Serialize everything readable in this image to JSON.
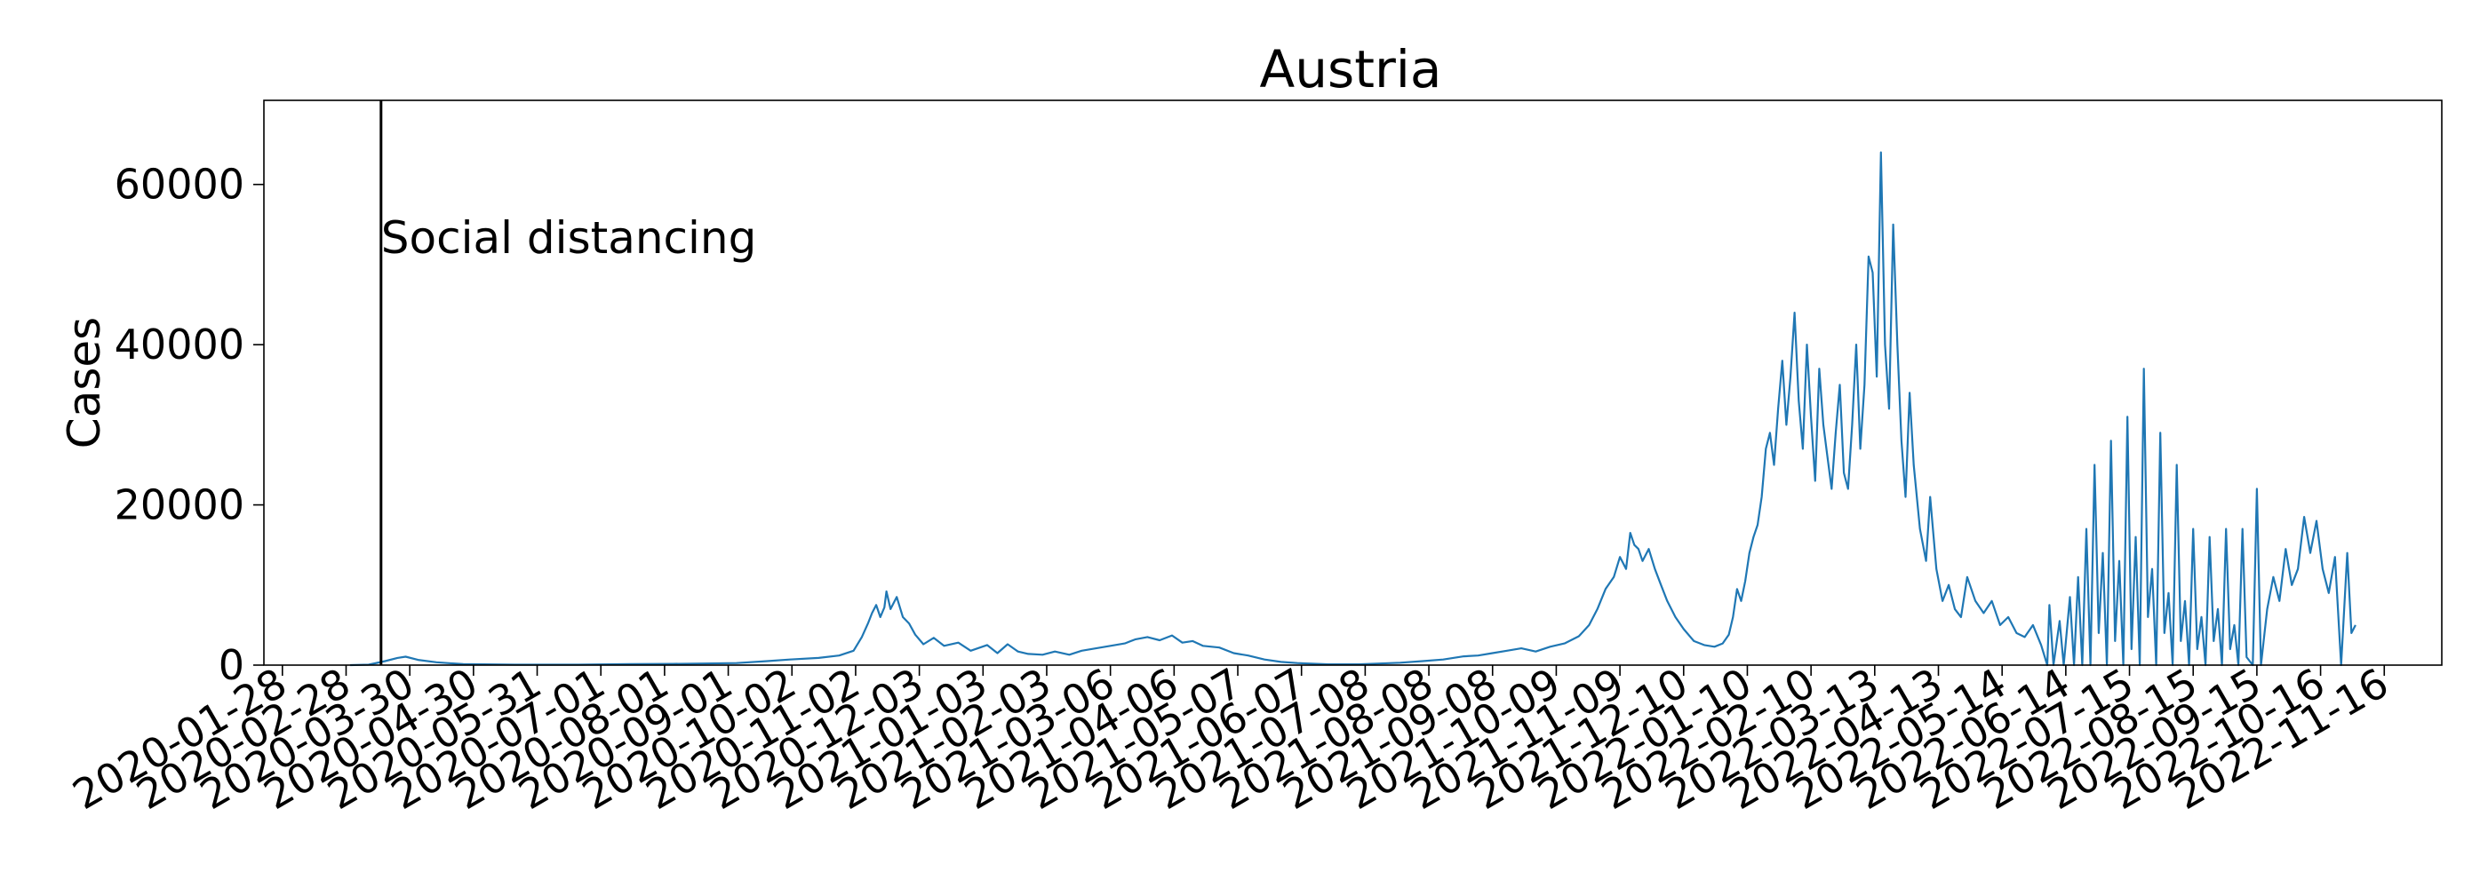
{
  "chart_data": {
    "type": "line",
    "title": "Austria",
    "xlabel": "",
    "ylabel": "Cases",
    "x_tick_labels": [
      "2020-01-28",
      "2020-02-28",
      "2020-03-30",
      "2020-04-30",
      "2020-05-31",
      "2020-07-01",
      "2020-08-01",
      "2020-09-01",
      "2020-10-02",
      "2020-11-02",
      "2020-12-03",
      "2021-01-03",
      "2021-02-03",
      "2021-03-06",
      "2021-04-06",
      "2021-05-07",
      "2021-06-07",
      "2021-07-08",
      "2021-08-08",
      "2021-09-08",
      "2021-10-09",
      "2021-11-09",
      "2021-12-10",
      "2022-01-10",
      "2022-02-10",
      "2022-03-13",
      "2022-04-13",
      "2022-05-14",
      "2022-06-14",
      "2022-07-15",
      "2022-08-15",
      "2022-09-15",
      "2022-10-16",
      "2022-11-16"
    ],
    "y_ticks": [
      0,
      20000,
      40000,
      60000
    ],
    "ylim": [
      0,
      70500
    ],
    "xlim": [
      "2020-01-19",
      "2022-12-14"
    ],
    "line_color": "#1f77b4",
    "grid": false,
    "annotation": {
      "label": "Social distancing",
      "x": "2020-03-16"
    },
    "series": [
      {
        "values": [
          [
            "2020-03-01",
            0
          ],
          [
            "2020-03-10",
            50
          ],
          [
            "2020-03-18",
            500
          ],
          [
            "2020-03-24",
            900
          ],
          [
            "2020-03-28",
            1050
          ],
          [
            "2020-04-03",
            650
          ],
          [
            "2020-04-12",
            350
          ],
          [
            "2020-04-25",
            120
          ],
          [
            "2020-05-20",
            60
          ],
          [
            "2020-06-20",
            60
          ],
          [
            "2020-07-15",
            120
          ],
          [
            "2020-08-05",
            150
          ],
          [
            "2020-08-20",
            200
          ],
          [
            "2020-09-05",
            250
          ],
          [
            "2020-09-20",
            500
          ],
          [
            "2020-10-01",
            700
          ],
          [
            "2020-10-15",
            900
          ],
          [
            "2020-10-25",
            1200
          ],
          [
            "2020-11-01",
            1800
          ],
          [
            "2020-11-05",
            3500
          ],
          [
            "2020-11-08",
            5200
          ],
          [
            "2020-11-10",
            6500
          ],
          [
            "2020-11-12",
            7500
          ],
          [
            "2020-11-14",
            6000
          ],
          [
            "2020-11-16",
            7200
          ],
          [
            "2020-11-17",
            9200
          ],
          [
            "2020-11-19",
            7000
          ],
          [
            "2020-11-22",
            8500
          ],
          [
            "2020-11-25",
            6000
          ],
          [
            "2020-11-28",
            5200
          ],
          [
            "2020-12-01",
            3800
          ],
          [
            "2020-12-05",
            2600
          ],
          [
            "2020-12-10",
            3400
          ],
          [
            "2020-12-15",
            2400
          ],
          [
            "2020-12-22",
            2800
          ],
          [
            "2020-12-28",
            1800
          ],
          [
            "2021-01-05",
            2500
          ],
          [
            "2021-01-10",
            1500
          ],
          [
            "2021-01-15",
            2600
          ],
          [
            "2021-01-20",
            1700
          ],
          [
            "2021-01-25",
            1400
          ],
          [
            "2021-02-01",
            1300
          ],
          [
            "2021-02-07",
            1700
          ],
          [
            "2021-02-14",
            1300
          ],
          [
            "2021-02-20",
            1800
          ],
          [
            "2021-02-27",
            2100
          ],
          [
            "2021-03-06",
            2400
          ],
          [
            "2021-03-13",
            2700
          ],
          [
            "2021-03-18",
            3200
          ],
          [
            "2021-03-24",
            3500
          ],
          [
            "2021-03-30",
            3100
          ],
          [
            "2021-04-05",
            3700
          ],
          [
            "2021-04-10",
            2800
          ],
          [
            "2021-04-15",
            3000
          ],
          [
            "2021-04-20",
            2400
          ],
          [
            "2021-04-28",
            2200
          ],
          [
            "2021-05-05",
            1500
          ],
          [
            "2021-05-12",
            1200
          ],
          [
            "2021-05-20",
            700
          ],
          [
            "2021-05-28",
            400
          ],
          [
            "2021-06-05",
            250
          ],
          [
            "2021-06-20",
            100
          ],
          [
            "2021-07-05",
            100
          ],
          [
            "2021-07-15",
            200
          ],
          [
            "2021-07-25",
            300
          ],
          [
            "2021-08-05",
            500
          ],
          [
            "2021-08-15",
            700
          ],
          [
            "2021-08-25",
            1100
          ],
          [
            "2021-09-01",
            1200
          ],
          [
            "2021-09-08",
            1500
          ],
          [
            "2021-09-15",
            1800
          ],
          [
            "2021-09-22",
            2100
          ],
          [
            "2021-09-29",
            1700
          ],
          [
            "2021-10-06",
            2300
          ],
          [
            "2021-10-13",
            2700
          ],
          [
            "2021-10-20",
            3600
          ],
          [
            "2021-10-25",
            5000
          ],
          [
            "2021-10-29",
            7000
          ],
          [
            "2021-11-02",
            9500
          ],
          [
            "2021-11-06",
            11000
          ],
          [
            "2021-11-09",
            13500
          ],
          [
            "2021-11-12",
            12000
          ],
          [
            "2021-11-14",
            16500
          ],
          [
            "2021-11-16",
            15000
          ],
          [
            "2021-11-18",
            14500
          ],
          [
            "2021-11-20",
            13000
          ],
          [
            "2021-11-23",
            14500
          ],
          [
            "2021-11-26",
            12000
          ],
          [
            "2021-11-29",
            10000
          ],
          [
            "2021-12-02",
            8000
          ],
          [
            "2021-12-06",
            6000
          ],
          [
            "2021-12-10",
            4500
          ],
          [
            "2021-12-15",
            3000
          ],
          [
            "2021-12-20",
            2500
          ],
          [
            "2021-12-25",
            2300
          ],
          [
            "2021-12-29",
            2700
          ],
          [
            "2022-01-01",
            3800
          ],
          [
            "2022-01-03",
            6000
          ],
          [
            "2022-01-05",
            9500
          ],
          [
            "2022-01-07",
            8000
          ],
          [
            "2022-01-09",
            10500
          ],
          [
            "2022-01-11",
            14000
          ],
          [
            "2022-01-13",
            16000
          ],
          [
            "2022-01-15",
            17500
          ],
          [
            "2022-01-17",
            21000
          ],
          [
            "2022-01-19",
            27000
          ],
          [
            "2022-01-21",
            29000
          ],
          [
            "2022-01-23",
            25000
          ],
          [
            "2022-01-25",
            32000
          ],
          [
            "2022-01-27",
            38000
          ],
          [
            "2022-01-29",
            30000
          ],
          [
            "2022-01-31",
            36000
          ],
          [
            "2022-02-02",
            44000
          ],
          [
            "2022-02-04",
            33000
          ],
          [
            "2022-02-06",
            27000
          ],
          [
            "2022-02-08",
            40000
          ],
          [
            "2022-02-10",
            31000
          ],
          [
            "2022-02-12",
            23000
          ],
          [
            "2022-02-14",
            37000
          ],
          [
            "2022-02-16",
            30000
          ],
          [
            "2022-02-18",
            26000
          ],
          [
            "2022-02-20",
            22000
          ],
          [
            "2022-02-22",
            29000
          ],
          [
            "2022-02-24",
            35000
          ],
          [
            "2022-02-26",
            24000
          ],
          [
            "2022-02-28",
            22000
          ],
          [
            "2022-03-02",
            30000
          ],
          [
            "2022-03-04",
            40000
          ],
          [
            "2022-03-06",
            27000
          ],
          [
            "2022-03-08",
            35000
          ],
          [
            "2022-03-10",
            51000
          ],
          [
            "2022-03-12",
            49000
          ],
          [
            "2022-03-14",
            36000
          ],
          [
            "2022-03-16",
            64000
          ],
          [
            "2022-03-18",
            40000
          ],
          [
            "2022-03-20",
            32000
          ],
          [
            "2022-03-22",
            55000
          ],
          [
            "2022-03-24",
            40000
          ],
          [
            "2022-03-26",
            28000
          ],
          [
            "2022-03-28",
            21000
          ],
          [
            "2022-03-30",
            34000
          ],
          [
            "2022-04-01",
            25000
          ],
          [
            "2022-04-04",
            17000
          ],
          [
            "2022-04-07",
            13000
          ],
          [
            "2022-04-09",
            21000
          ],
          [
            "2022-04-12",
            12000
          ],
          [
            "2022-04-15",
            8000
          ],
          [
            "2022-04-18",
            10000
          ],
          [
            "2022-04-21",
            7000
          ],
          [
            "2022-04-24",
            6000
          ],
          [
            "2022-04-27",
            11000
          ],
          [
            "2022-05-01",
            8000
          ],
          [
            "2022-05-05",
            6500
          ],
          [
            "2022-05-09",
            8000
          ],
          [
            "2022-05-13",
            5000
          ],
          [
            "2022-05-17",
            6000
          ],
          [
            "2022-05-21",
            4000
          ],
          [
            "2022-05-25",
            3500
          ],
          [
            "2022-05-29",
            5000
          ],
          [
            "2022-06-02",
            2500
          ],
          [
            "2022-06-05",
            0
          ],
          [
            "2022-06-06",
            7500
          ],
          [
            "2022-06-08",
            0
          ],
          [
            "2022-06-11",
            5500
          ],
          [
            "2022-06-13",
            0
          ],
          [
            "2022-06-16",
            8500
          ],
          [
            "2022-06-18",
            0
          ],
          [
            "2022-06-20",
            11000
          ],
          [
            "2022-06-22",
            0
          ],
          [
            "2022-06-24",
            17000
          ],
          [
            "2022-06-26",
            0
          ],
          [
            "2022-06-28",
            25000
          ],
          [
            "2022-06-30",
            4000
          ],
          [
            "2022-07-02",
            14000
          ],
          [
            "2022-07-04",
            0
          ],
          [
            "2022-07-06",
            28000
          ],
          [
            "2022-07-08",
            3000
          ],
          [
            "2022-07-10",
            13000
          ],
          [
            "2022-07-12",
            0
          ],
          [
            "2022-07-14",
            31000
          ],
          [
            "2022-07-16",
            2000
          ],
          [
            "2022-07-18",
            16000
          ],
          [
            "2022-07-20",
            0
          ],
          [
            "2022-07-22",
            37000
          ],
          [
            "2022-07-24",
            6000
          ],
          [
            "2022-07-26",
            12000
          ],
          [
            "2022-07-28",
            0
          ],
          [
            "2022-07-30",
            29000
          ],
          [
            "2022-08-01",
            4000
          ],
          [
            "2022-08-03",
            9000
          ],
          [
            "2022-08-05",
            0
          ],
          [
            "2022-08-07",
            25000
          ],
          [
            "2022-08-09",
            3000
          ],
          [
            "2022-08-11",
            8000
          ],
          [
            "2022-08-13",
            0
          ],
          [
            "2022-08-15",
            17000
          ],
          [
            "2022-08-17",
            2000
          ],
          [
            "2022-08-19",
            6000
          ],
          [
            "2022-08-21",
            0
          ],
          [
            "2022-08-23",
            16000
          ],
          [
            "2022-08-25",
            3000
          ],
          [
            "2022-08-27",
            7000
          ],
          [
            "2022-08-29",
            0
          ],
          [
            "2022-08-31",
            17000
          ],
          [
            "2022-09-02",
            2000
          ],
          [
            "2022-09-04",
            5000
          ],
          [
            "2022-09-06",
            0
          ],
          [
            "2022-09-08",
            17000
          ],
          [
            "2022-09-10",
            1000
          ],
          [
            "2022-09-13",
            0
          ],
          [
            "2022-09-15",
            22000
          ],
          [
            "2022-09-17",
            0
          ],
          [
            "2022-09-20",
            7000
          ],
          [
            "2022-09-23",
            11000
          ],
          [
            "2022-09-26",
            8000
          ],
          [
            "2022-09-29",
            14500
          ],
          [
            "2022-10-02",
            10000
          ],
          [
            "2022-10-05",
            12000
          ],
          [
            "2022-10-08",
            18500
          ],
          [
            "2022-10-11",
            14000
          ],
          [
            "2022-10-14",
            18000
          ],
          [
            "2022-10-17",
            12000
          ],
          [
            "2022-10-20",
            9000
          ],
          [
            "2022-10-23",
            13500
          ],
          [
            "2022-10-26",
            0
          ],
          [
            "2022-10-29",
            14000
          ],
          [
            "2022-10-31",
            4000
          ],
          [
            "2022-11-02",
            5000
          ]
        ]
      }
    ]
  }
}
